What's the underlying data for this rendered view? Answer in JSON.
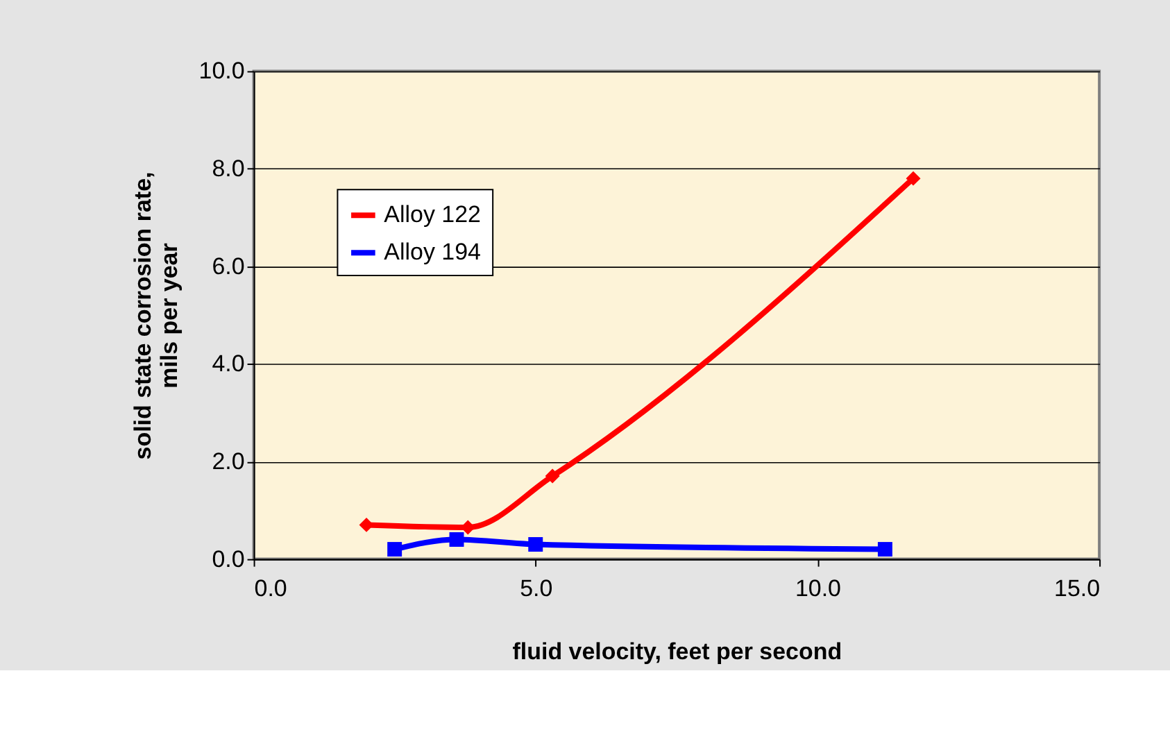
{
  "chart_data": {
    "type": "line",
    "xlabel": "fluid velocity, feet per second",
    "ylabel": "solid state corrosion rate, mils per year",
    "series": [
      {
        "name": "Alloy 122",
        "color": "#ff0000",
        "marker": "diamond",
        "x": [
          2.0,
          3.8,
          5.3,
          11.7
        ],
        "values": [
          0.7,
          0.65,
          1.7,
          7.8
        ]
      },
      {
        "name": "Alloy 194",
        "color": "#0000ff",
        "marker": "square",
        "x": [
          2.5,
          3.6,
          5.0,
          11.2
        ],
        "values": [
          0.2,
          0.4,
          0.3,
          0.2
        ]
      }
    ],
    "xlim": [
      0,
      15
    ],
    "xticks": [
      {
        "value": 0,
        "label": "0.0"
      },
      {
        "value": 5,
        "label": "5.0"
      },
      {
        "value": 10,
        "label": "10.0"
      },
      {
        "value": 15,
        "label": "15.0"
      }
    ],
    "ylim": [
      0,
      10
    ],
    "yticks": [
      {
        "value": 0,
        "label": "0.0"
      },
      {
        "value": 2,
        "label": "2.0"
      },
      {
        "value": 4,
        "label": "4.0"
      },
      {
        "value": 6,
        "label": "6.0"
      },
      {
        "value": 8,
        "label": "8.0"
      },
      {
        "value": 10,
        "label": "10.0"
      }
    ],
    "grid": "y",
    "legend": "top left",
    "line_style": "solid"
  }
}
